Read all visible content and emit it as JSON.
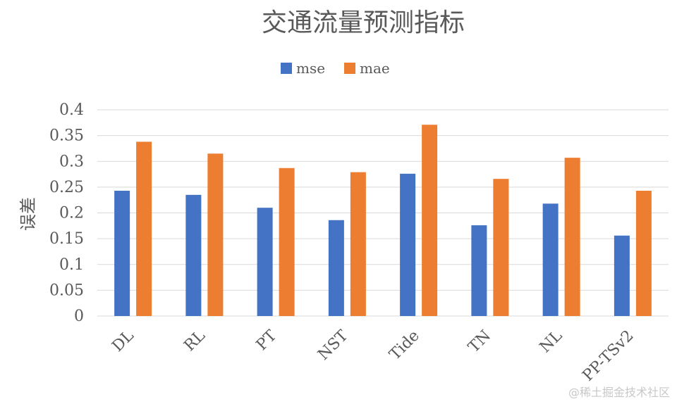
{
  "chart_data": {
    "type": "bar",
    "title": "交通流量预测指标",
    "ylabel": "误差",
    "xlabel": "",
    "categories": [
      "DL",
      "RL",
      "PT",
      "NST",
      "Tide",
      "TN",
      "NL",
      "PP-TSv2"
    ],
    "series": [
      {
        "name": "mse",
        "color": "#4472c4",
        "values": [
          0.243,
          0.235,
          0.21,
          0.186,
          0.276,
          0.176,
          0.218,
          0.156
        ]
      },
      {
        "name": "mae",
        "color": "#ed7d31",
        "values": [
          0.338,
          0.315,
          0.287,
          0.279,
          0.371,
          0.266,
          0.307,
          0.243
        ]
      }
    ],
    "ylim": [
      0,
      0.4
    ],
    "yticks": [
      "0",
      "0.05",
      "0.1",
      "0.15",
      "0.2",
      "0.25",
      "0.3",
      "0.35",
      "0.4"
    ],
    "grid": true,
    "legend_position": "top-center"
  },
  "watermark": "@稀土掘金技术社区"
}
